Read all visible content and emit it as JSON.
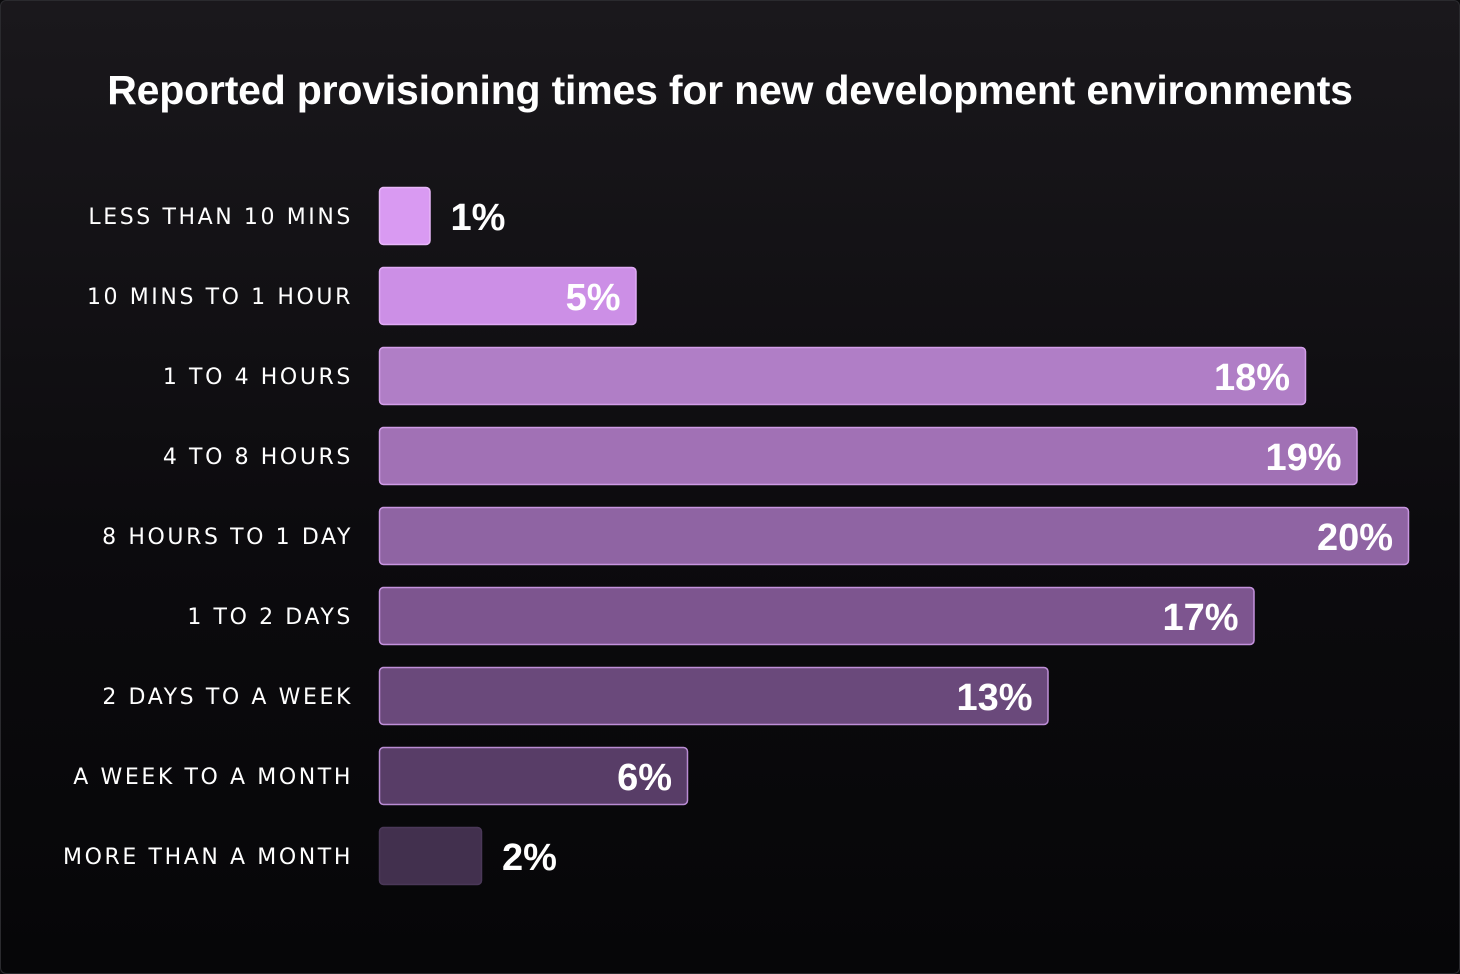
{
  "chart_data": {
    "type": "bar",
    "orientation": "horizontal",
    "title": "Reported provisioning times for new development environments",
    "categories": [
      "LESS THAN 10 MINS",
      "10 MINS TO 1 HOUR",
      "1 TO 4 HOURS",
      "4 TO 8 HOURS",
      "8 HOURS TO 1 DAY",
      "1 TO 2 DAYS",
      "2 DAYS TO A WEEK",
      "A WEEK TO A MONTH",
      "MORE THAN A MONTH"
    ],
    "values": [
      1,
      5,
      18,
      19,
      20,
      17,
      13,
      6,
      2
    ],
    "value_labels": [
      "1%",
      "5%",
      "18%",
      "19%",
      "20%",
      "17%",
      "13%",
      "6%",
      "2%"
    ],
    "unit": "%",
    "xlim": [
      0,
      20
    ],
    "grid": false,
    "legend": "none",
    "colors": {
      "background_top": "#1a181c",
      "background_bottom": "#060608",
      "bar_fills": [
        "#d99af2",
        "#cc8fe6",
        "#b07ec6",
        "#a171b5",
        "#8f64a3",
        "#7d558f",
        "#6a497b",
        "#583d67",
        "#42304e"
      ],
      "bar_borders": [
        "#e7b6f8",
        "#e0aaf5",
        "#d39ee9",
        "#cf9be6",
        "#c895e0",
        "#c492dd",
        "#bf8fd8",
        "#b98cd3",
        "#4a3858"
      ],
      "text": "#ffffff"
    }
  }
}
